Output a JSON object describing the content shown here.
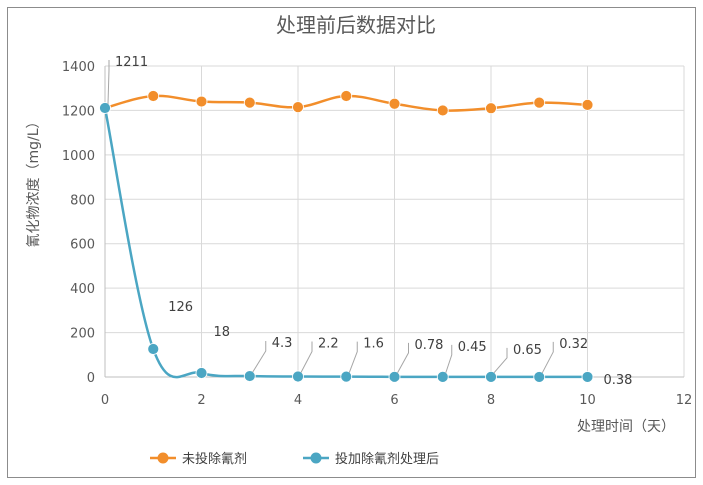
{
  "chart_data": {
    "type": "line",
    "title": "处理前后数据对比",
    "xlabel": "处理时间（天）",
    "ylabel": "氰化物浓度（mg/L）",
    "xlim": [
      0,
      12
    ],
    "ylim": [
      0,
      1400
    ],
    "x_ticks": [
      "0",
      "2",
      "4",
      "6",
      "8",
      "10",
      "12"
    ],
    "y_ticks": [
      "0",
      "200",
      "400",
      "600",
      "800",
      "1000",
      "1200",
      "1400"
    ],
    "grid": true,
    "legend_position": "bottom",
    "series": [
      {
        "name": "未投除氰剂",
        "color": "#f28e2b",
        "x": [
          0,
          1,
          2,
          3,
          4,
          5,
          6,
          7,
          8,
          9,
          10
        ],
        "y": [
          1211,
          1265,
          1240,
          1235,
          1215,
          1265,
          1230,
          1200,
          1210,
          1235,
          1225
        ]
      },
      {
        "name": "投加除氰剂处理后",
        "color": "#4ba6c3",
        "x": [
          0,
          1,
          2,
          3,
          4,
          5,
          6,
          7,
          8,
          9,
          10
        ],
        "y": [
          1211,
          126,
          18,
          4.3,
          2.2,
          1.6,
          0.78,
          0.45,
          0.65,
          0.32,
          0.38
        ],
        "labels": [
          "1211",
          "126",
          "18",
          "4.3",
          "2.2",
          "1.6",
          "0.78",
          "0.45",
          "0.65",
          "0.32",
          "0.38"
        ]
      }
    ]
  }
}
